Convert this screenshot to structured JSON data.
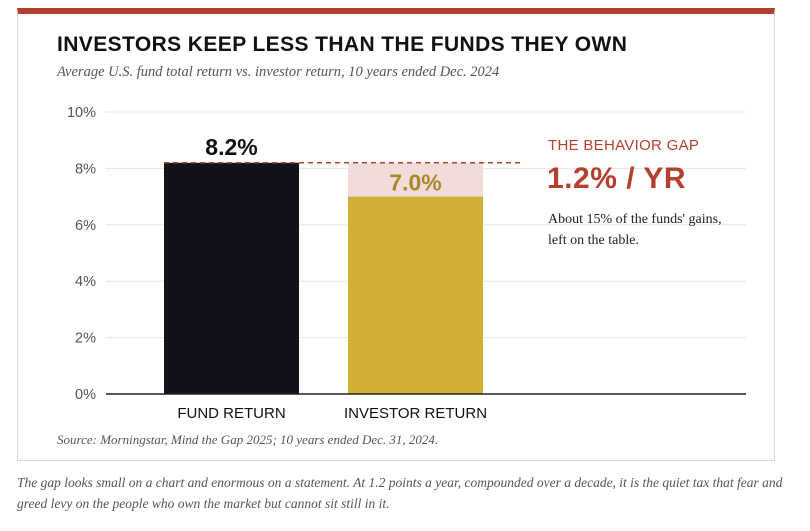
{
  "title": "INVESTORS KEEP LESS THAN THE FUNDS THEY OWN",
  "subtitle": "Average U.S. fund total return vs. investor return, 10 years ended Dec. 2024",
  "source": "Source: Morningstar, Mind the Gap 2025; 10 years ended Dec. 31, 2024.",
  "caption": "The gap looks small on a chart and enormous on a statement. At 1.2 points a year, compounded over a decade, it is the quiet tax that fear and greed levy on the people who own the market but cannot sit still in it.",
  "annotation": {
    "label": "THE BEHAVIOR GAP",
    "value": "1.2% / YR",
    "note": "About 15% of the funds' gains, left on the table."
  },
  "colors": {
    "accent": "#b5402f",
    "fund_bar": "#12131a",
    "investor_bar": "#d1ae35",
    "investor_label": "#a8892a",
    "gap_fill": "#f2dcd9"
  },
  "chart_data": {
    "type": "bar",
    "categories": [
      "FUND RETURN",
      "INVESTOR RETURN"
    ],
    "values": [
      8.2,
      7.0
    ],
    "data_labels": [
      "8.2%",
      "7.0%"
    ],
    "ylim": [
      0,
      10
    ],
    "yticks": [
      0,
      2,
      4,
      6,
      8,
      10
    ],
    "ytick_labels": [
      "0%",
      "2%",
      "4%",
      "6%",
      "8%",
      "10%"
    ],
    "grid": true,
    "reference_line": 8.2,
    "xlabel": "",
    "ylabel": ""
  }
}
